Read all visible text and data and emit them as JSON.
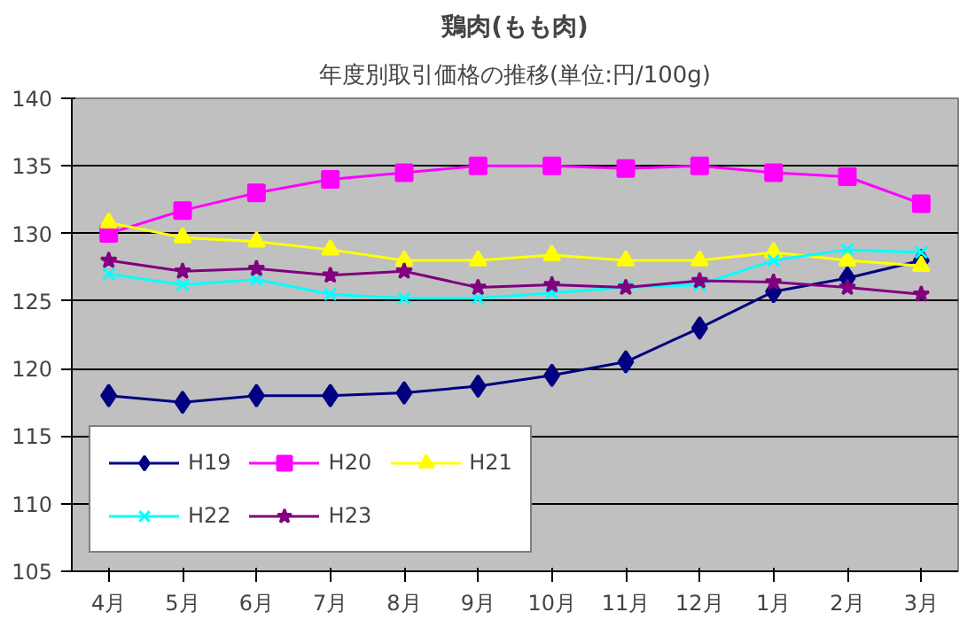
{
  "chart_data": {
    "type": "line",
    "title": "鶏肉(もも肉)",
    "subtitle": "年度別取引価格の推移(単位:円/100g)",
    "categories": [
      "4月",
      "5月",
      "6月",
      "7月",
      "8月",
      "9月",
      "10月",
      "11月",
      "12月",
      "1月",
      "2月",
      "3月"
    ],
    "series": [
      {
        "name": "H19",
        "color": "#000080",
        "marker": "diamond",
        "values": [
          118,
          117.5,
          118,
          118,
          118.2,
          118.7,
          119.5,
          120.5,
          123,
          125.7,
          126.7,
          128
        ]
      },
      {
        "name": "H20",
        "color": "#ff00ff",
        "marker": "square",
        "values": [
          130,
          131.7,
          133,
          134,
          134.5,
          135,
          135,
          134.8,
          135,
          134.5,
          134.2,
          132.2
        ]
      },
      {
        "name": "H21",
        "color": "#ffff00",
        "marker": "triangle",
        "values": [
          130.8,
          129.7,
          129.4,
          128.8,
          128,
          128,
          128.4,
          128,
          128,
          128.6,
          128,
          127.6
        ]
      },
      {
        "name": "H22",
        "color": "#00ffff",
        "marker": "cross",
        "values": [
          127,
          126.2,
          126.6,
          125.5,
          125.2,
          125.2,
          125.6,
          126,
          126.2,
          128,
          128.8,
          128.6
        ]
      },
      {
        "name": "H23",
        "color": "#800080",
        "marker": "star",
        "values": [
          128,
          127.2,
          127.4,
          126.9,
          127.2,
          126,
          126.2,
          126,
          126.5,
          126.4,
          126,
          125.5
        ]
      }
    ],
    "ylim": [
      105,
      140
    ],
    "yticks": [
      105,
      110,
      115,
      120,
      125,
      130,
      135,
      140
    ],
    "grid": "y",
    "legend": "bottom left",
    "line_style": "solid"
  }
}
